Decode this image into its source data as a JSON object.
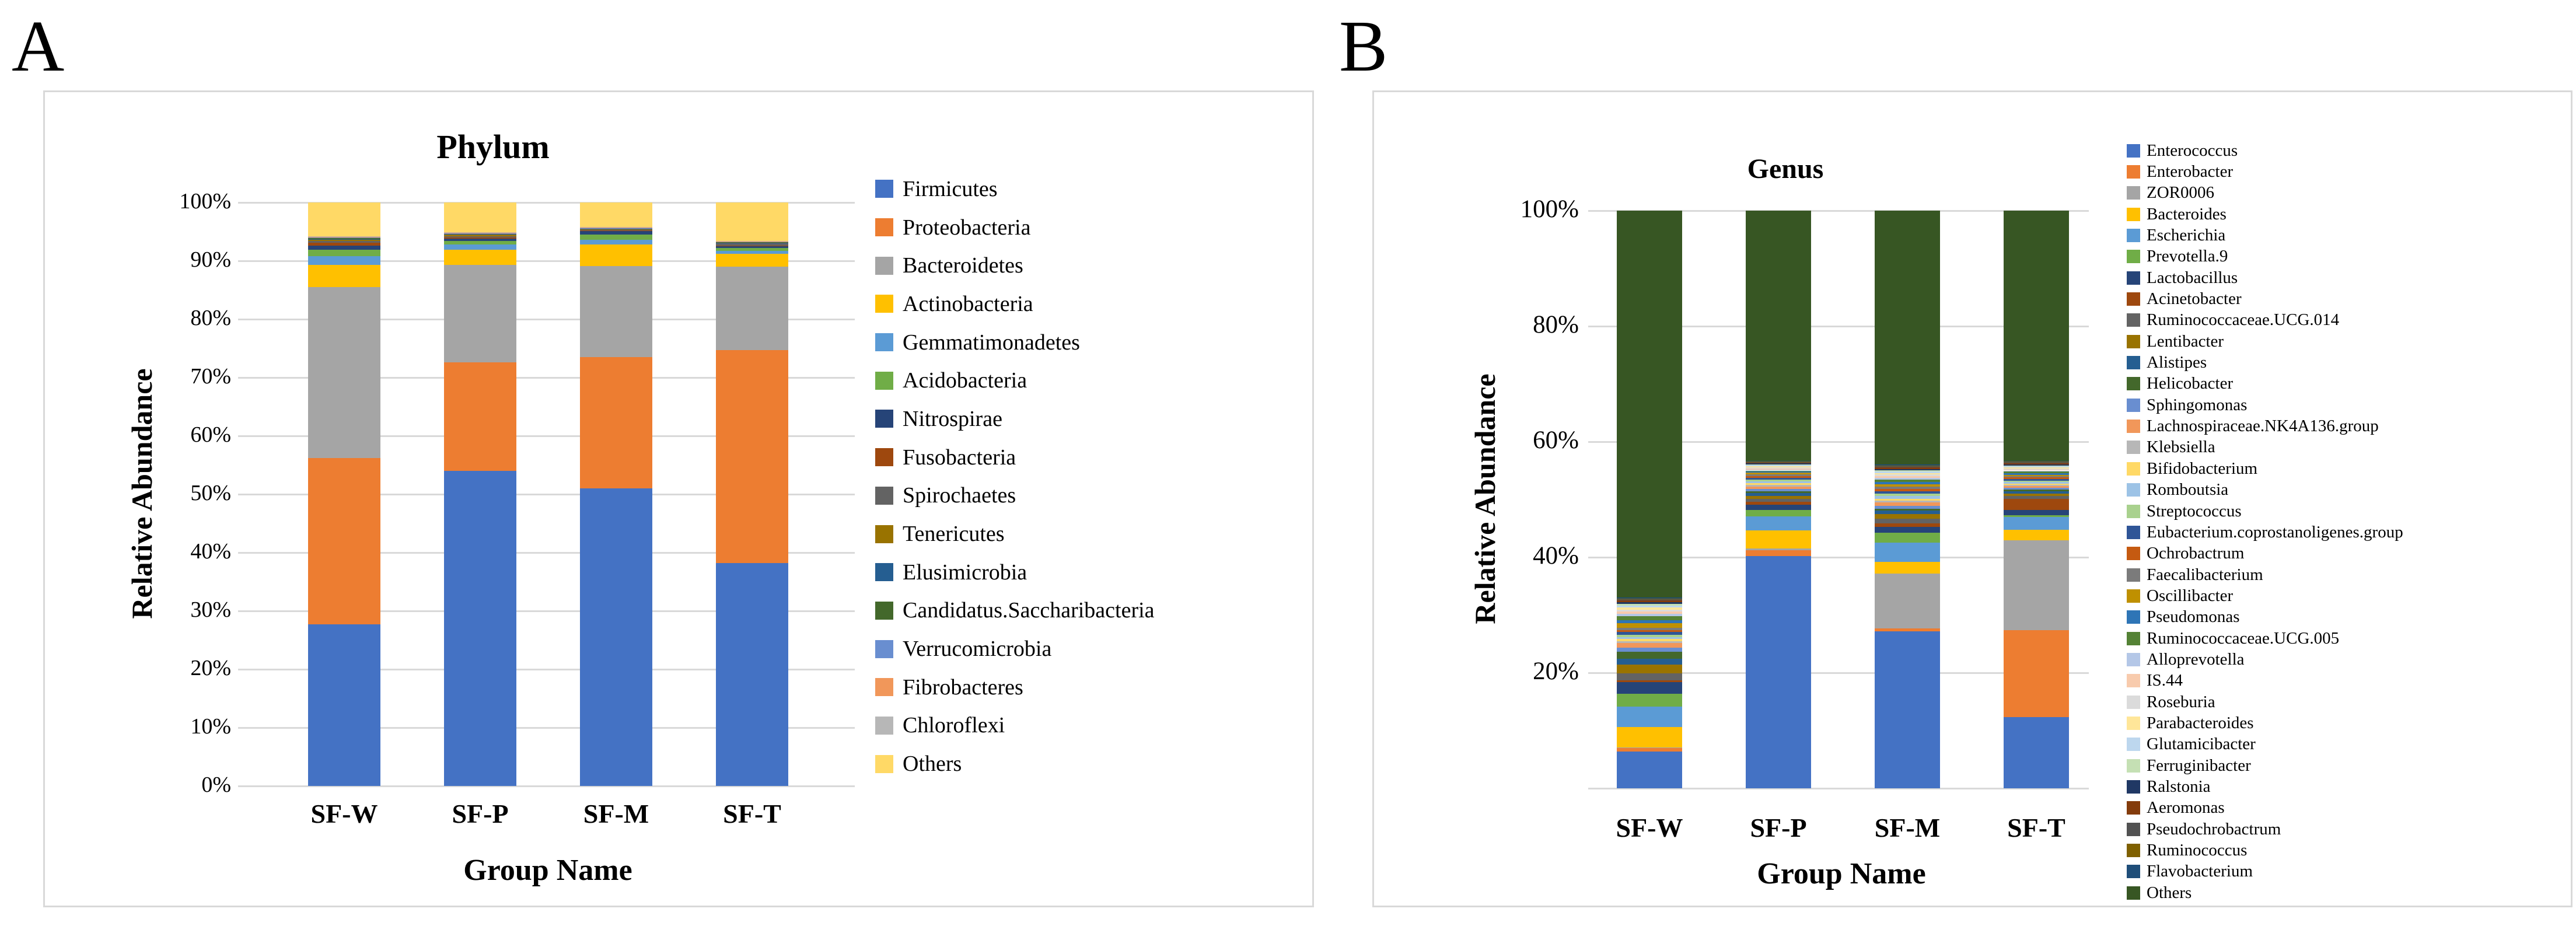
{
  "figure": {
    "panel_a_label": "A",
    "panel_b_label": "B"
  },
  "chart_data": [
    {
      "type": "bar",
      "stacked": true,
      "percent": true,
      "title": "Phylum",
      "xlabel": "Group Name",
      "ylabel": "Relative Abundance",
      "ylim": [
        0,
        100
      ],
      "grid": true,
      "legend_position": "right",
      "categories": [
        "SF-W",
        "SF-P",
        "SF-M",
        "SF-T"
      ],
      "y_ticks": [
        {
          "label": "0%",
          "value": 0
        },
        {
          "label": "10%",
          "value": 10
        },
        {
          "label": "20%",
          "value": 20
        },
        {
          "label": "30%",
          "value": 30
        },
        {
          "label": "40%",
          "value": 40
        },
        {
          "label": "50%",
          "value": 50
        },
        {
          "label": "60%",
          "value": 60
        },
        {
          "label": "70%",
          "value": 70
        },
        {
          "label": "80%",
          "value": 80
        },
        {
          "label": "90%",
          "value": 90
        },
        {
          "label": "100%",
          "value": 100
        }
      ],
      "series": [
        {
          "name": "Firmicutes",
          "color": "#4472C4",
          "values": [
            27.7,
            54.0,
            51.0,
            38.2
          ]
        },
        {
          "name": "Proteobacteria",
          "color": "#ED7D31",
          "values": [
            28.5,
            18.6,
            22.5,
            36.5
          ]
        },
        {
          "name": "Bacteroidetes",
          "color": "#A5A5A5",
          "values": [
            29.3,
            16.7,
            15.6,
            14.3
          ]
        },
        {
          "name": "Actinobacteria",
          "color": "#FFC000",
          "values": [
            3.8,
            2.6,
            3.7,
            2.2
          ]
        },
        {
          "name": "Gemmatimonadetes",
          "color": "#5B9BD5",
          "values": [
            1.5,
            0.9,
            0.8,
            0.5
          ]
        },
        {
          "name": "Acidobacteria",
          "color": "#70AD47",
          "values": [
            1.1,
            0.6,
            0.9,
            0.5
          ]
        },
        {
          "name": "Nitrospirae",
          "color": "#264478",
          "values": [
            0.7,
            0.4,
            0.6,
            0.3
          ]
        },
        {
          "name": "Fusobacteria",
          "color": "#9E480E",
          "values": [
            0.5,
            0.2,
            0.1,
            0.1
          ]
        },
        {
          "name": "Spirochaetes",
          "color": "#636363",
          "values": [
            0.3,
            0.2,
            0.15,
            0.4
          ]
        },
        {
          "name": "Tenericutes",
          "color": "#997300",
          "values": [
            0.2,
            0.3,
            0.1,
            0.1
          ]
        },
        {
          "name": "Elusimicrobia",
          "color": "#255E91",
          "values": [
            0.1,
            0.1,
            0.05,
            0.05
          ]
        },
        {
          "name": "Candidatus.Saccharibacteria",
          "color": "#43682B",
          "values": [
            0.2,
            0.1,
            0.1,
            0.1
          ]
        },
        {
          "name": "Verrucomicrobia",
          "color": "#698ED0",
          "values": [
            0.1,
            0.05,
            0.05,
            0.05
          ]
        },
        {
          "name": "Fibrobacteres",
          "color": "#F1975A",
          "values": [
            0.1,
            0.05,
            0.05,
            0.05
          ]
        },
        {
          "name": "Chloroflexi",
          "color": "#B7B7B7",
          "values": [
            0.1,
            0.1,
            0.1,
            0.05
          ]
        },
        {
          "name": "Others",
          "color": "#FFD966",
          "values": [
            5.8,
            5.1,
            4.2,
            6.6
          ]
        }
      ]
    },
    {
      "type": "bar",
      "stacked": true,
      "percent": true,
      "title": "Genus",
      "xlabel": "Group Name",
      "ylabel": "Relative Abundance",
      "ylim": [
        0,
        100
      ],
      "grid": true,
      "legend_position": "right",
      "categories": [
        "SF-W",
        "SF-P",
        "SF-M",
        "SF-T"
      ],
      "y_ticks": [
        {
          "label": "20%",
          "value": 20
        },
        {
          "label": "40%",
          "value": 40
        },
        {
          "label": "60%",
          "value": 60
        },
        {
          "label": "80%",
          "value": 80
        },
        {
          "label": "100%",
          "value": 100
        }
      ],
      "series": [
        {
          "name": "Enterococcus",
          "color": "#4472C4",
          "values": [
            6.4,
            40.2,
            27.2,
            12.3
          ]
        },
        {
          "name": "Enterobacter",
          "color": "#ED7D31",
          "values": [
            0.6,
            1.0,
            0.5,
            15.1
          ]
        },
        {
          "name": "ZOR0006",
          "color": "#A5A5A5",
          "values": [
            0.1,
            0.3,
            9.5,
            15.5
          ]
        },
        {
          "name": "Bacteroides",
          "color": "#FFC000",
          "values": [
            3.5,
            3.1,
            2.0,
            1.8
          ]
        },
        {
          "name": "Escherichia",
          "color": "#5B9BD5",
          "values": [
            3.5,
            2.5,
            3.3,
            2.3
          ]
        },
        {
          "name": "Prevotella.9",
          "color": "#70AD47",
          "values": [
            2.3,
            1.1,
            1.7,
            0.3
          ]
        },
        {
          "name": "Lactobacillus",
          "color": "#264478",
          "values": [
            2.0,
            0.9,
            1.1,
            0.9
          ]
        },
        {
          "name": "Acinetobacter",
          "color": "#9E480E",
          "values": [
            0.3,
            0.5,
            0.6,
            1.9
          ]
        },
        {
          "name": "Ruminococcaceae.UCG.014",
          "color": "#636363",
          "values": [
            1.2,
            0.5,
            0.8,
            0.5
          ]
        },
        {
          "name": "Lentibacter",
          "color": "#997300",
          "values": [
            1.5,
            0.5,
            0.8,
            0.4
          ]
        },
        {
          "name": "Alistipes",
          "color": "#255E91",
          "values": [
            1.0,
            0.5,
            0.6,
            0.4
          ]
        },
        {
          "name": "Helicobacter",
          "color": "#43682B",
          "values": [
            1.2,
            0.3,
            0.3,
            0.3
          ]
        },
        {
          "name": "Sphingomonas",
          "color": "#698ED0",
          "values": [
            0.7,
            0.4,
            0.5,
            0.3
          ]
        },
        {
          "name": "Lachnospiraceae.NK4A136.group",
          "color": "#F1975A",
          "values": [
            0.9,
            0.4,
            0.6,
            0.3
          ]
        },
        {
          "name": "Klebsiella",
          "color": "#B7B7B7",
          "values": [
            0.3,
            0.3,
            0.3,
            0.2
          ]
        },
        {
          "name": "Bifidobacterium",
          "color": "#FFD966",
          "values": [
            0.4,
            0.3,
            0.3,
            0.2
          ]
        },
        {
          "name": "Romboutsia",
          "color": "#9DC3E6",
          "values": [
            0.3,
            0.3,
            0.5,
            0.3
          ]
        },
        {
          "name": "Streptococcus",
          "color": "#A9D18E",
          "values": [
            0.4,
            0.3,
            0.4,
            0.2
          ]
        },
        {
          "name": "Eubacterium.coprostanoligenes.group",
          "color": "#2F5597",
          "values": [
            0.5,
            0.3,
            0.45,
            0.3
          ]
        },
        {
          "name": "Ochrobactrum",
          "color": "#C55A11",
          "values": [
            0.3,
            0.3,
            0.4,
            0.3
          ]
        },
        {
          "name": "Faecalibacterium",
          "color": "#7B7B7B",
          "values": [
            0.4,
            0.3,
            0.4,
            0.2
          ]
        },
        {
          "name": "Oscillibacter",
          "color": "#BF9000",
          "values": [
            0.8,
            0.3,
            0.4,
            0.2
          ]
        },
        {
          "name": "Pseudomonas",
          "color": "#2E75B6",
          "values": [
            0.5,
            0.2,
            0.4,
            0.3
          ]
        },
        {
          "name": "Ruminococcaceae.UCG.005",
          "color": "#548235",
          "values": [
            0.7,
            0.2,
            0.4,
            0.3
          ]
        },
        {
          "name": "Alloprevotella",
          "color": "#B4C7E7",
          "values": [
            0.4,
            0.2,
            0.3,
            0.2
          ]
        },
        {
          "name": "IS.44",
          "color": "#F8CBAD",
          "values": [
            0.4,
            0.2,
            0.3,
            0.2
          ]
        },
        {
          "name": "Roseburia",
          "color": "#DBDBDB",
          "values": [
            0.3,
            0.2,
            0.25,
            0.2
          ]
        },
        {
          "name": "Parabacteroides",
          "color": "#FFE699",
          "values": [
            0.4,
            0.2,
            0.25,
            0.2
          ]
        },
        {
          "name": "Glutamicibacter",
          "color": "#BDD7EE",
          "values": [
            0.3,
            0.15,
            0.25,
            0.15
          ]
        },
        {
          "name": "Ferruginibacter",
          "color": "#C5E0B4",
          "values": [
            0.3,
            0.15,
            0.25,
            0.15
          ]
        },
        {
          "name": "Ralstonia",
          "color": "#203864",
          "values": [
            0.3,
            0.15,
            0.25,
            0.2
          ]
        },
        {
          "name": "Aeromonas",
          "color": "#843C0C",
          "values": [
            0.3,
            0.15,
            0.25,
            0.2
          ]
        },
        {
          "name": "Pseudochrobactrum",
          "color": "#525252",
          "values": [
            0.2,
            0.1,
            0.2,
            0.15
          ]
        },
        {
          "name": "Ruminococcus",
          "color": "#7F6000",
          "values": [
            0.1,
            0.1,
            0.1,
            0.1
          ]
        },
        {
          "name": "Flavobacterium",
          "color": "#1F4E79",
          "values": [
            0.2,
            0.1,
            0.2,
            0.15
          ]
        },
        {
          "name": "Others",
          "color": "#375623",
          "values": [
            67.0,
            43.3,
            43.95,
            43.3
          ]
        }
      ]
    }
  ]
}
